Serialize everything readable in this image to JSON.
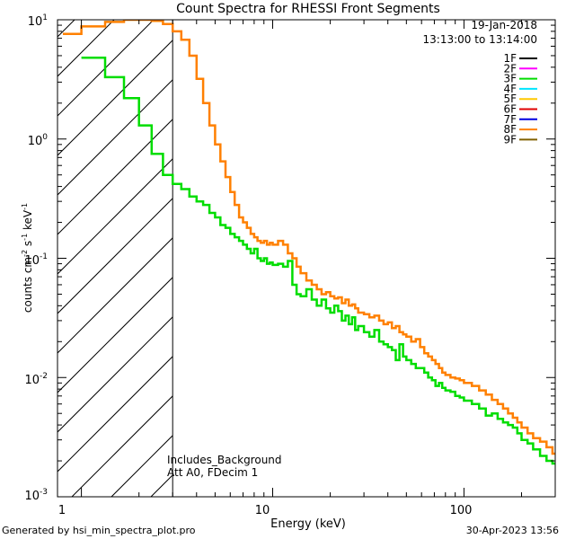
{
  "chart_data": {
    "type": "line",
    "title": "Count Spectra for RHESSI Front Segments",
    "xlabel": "Energy (keV)",
    "ylabel_parts": [
      "counts cm",
      "-2",
      " s",
      "-1",
      " keV",
      "-1"
    ],
    "xscale": "log",
    "yscale": "log",
    "xlim": [
      0.75,
      300
    ],
    "ylim": [
      0.001,
      10
    ],
    "x_ticks": [
      {
        "v": 1,
        "label": "1"
      },
      {
        "v": 10,
        "label": "10"
      },
      {
        "v": 100,
        "label": "100"
      }
    ],
    "y_ticks": [
      {
        "v": 0.001,
        "base": "10",
        "exp": "-3"
      },
      {
        "v": 0.01,
        "base": "10",
        "exp": "-2"
      },
      {
        "v": 0.1,
        "base": "10",
        "exp": "-1"
      },
      {
        "v": 1,
        "base": "10",
        "exp": "0"
      },
      {
        "v": 10,
        "base": "10",
        "exp": "1"
      }
    ],
    "hatched_region": {
      "x_from": 0.75,
      "x_to": 3.0
    },
    "date": "19-Jan-2018",
    "time_range": "13:13:00 to 13:14:00",
    "annotations": [
      "Includes_Background",
      "Att A0, FDecim 1"
    ],
    "legend": [
      {
        "name": "1F",
        "color": "#000000"
      },
      {
        "name": "2F",
        "color": "#ff00ff"
      },
      {
        "name": "3F",
        "color": "#00dd00"
      },
      {
        "name": "4F",
        "color": "#00e5ff"
      },
      {
        "name": "5F",
        "color": "#ffc800"
      },
      {
        "name": "6F",
        "color": "#e00000"
      },
      {
        "name": "7F",
        "color": "#0000e0"
      },
      {
        "name": "8F",
        "color": "#ff8000"
      },
      {
        "name": "9F",
        "color": "#806000"
      }
    ],
    "series": [
      {
        "name": "3F",
        "color": "#00dd00",
        "x": [
          1.0,
          1.33,
          1.67,
          2.0,
          2.33,
          2.67,
          3.0,
          3.33,
          3.67,
          4.0,
          4.33,
          4.67,
          5.0,
          5.33,
          5.67,
          6.0,
          6.33,
          6.67,
          7.0,
          7.33,
          7.67,
          8.0,
          8.33,
          8.67,
          9.0,
          9.33,
          9.67,
          10.0,
          10.67,
          11.33,
          12.0,
          12.67,
          13.33,
          14.0,
          15.0,
          16.0,
          17.0,
          18.0,
          19.0,
          20.0,
          21.0,
          22.0,
          23.0,
          24.0,
          25.0,
          26.0,
          27.0,
          28.0,
          30.0,
          32.0,
          34.0,
          36.0,
          38.0,
          40.0,
          42.0,
          44.0,
          46.0,
          48.0,
          50.0,
          53.0,
          56.0,
          59.0,
          62.0,
          65.0,
          68.0,
          71.0,
          74.0,
          77.0,
          80.0,
          85.0,
          90.0,
          95.0,
          100.0,
          110.0,
          120.0,
          130.0,
          140.0,
          150.0,
          160.0,
          170.0,
          180.0,
          190.0,
          200.0,
          215.0,
          230.0,
          250.0,
          270.0,
          290.0
        ],
        "y": [
          4.8,
          3.3,
          2.2,
          1.3,
          0.75,
          0.5,
          0.42,
          0.38,
          0.33,
          0.3,
          0.28,
          0.24,
          0.22,
          0.19,
          0.18,
          0.16,
          0.15,
          0.14,
          0.13,
          0.12,
          0.11,
          0.12,
          0.1,
          0.095,
          0.1,
          0.09,
          0.092,
          0.088,
          0.09,
          0.085,
          0.095,
          0.06,
          0.05,
          0.048,
          0.055,
          0.045,
          0.04,
          0.045,
          0.038,
          0.035,
          0.04,
          0.036,
          0.03,
          0.033,
          0.028,
          0.032,
          0.025,
          0.027,
          0.024,
          0.022,
          0.025,
          0.02,
          0.019,
          0.018,
          0.017,
          0.014,
          0.019,
          0.015,
          0.014,
          0.013,
          0.012,
          0.012,
          0.011,
          0.01,
          0.0095,
          0.0085,
          0.009,
          0.0082,
          0.0078,
          0.0076,
          0.007,
          0.0068,
          0.0064,
          0.006,
          0.0055,
          0.0048,
          0.005,
          0.0045,
          0.0042,
          0.004,
          0.0038,
          0.0034,
          0.003,
          0.0028,
          0.0025,
          0.0022,
          0.002,
          0.0019
        ]
      },
      {
        "name": "8F",
        "color": "#ff8000",
        "x": [
          0.8,
          1.0,
          1.33,
          1.67,
          2.0,
          2.33,
          2.67,
          3.0,
          3.33,
          3.67,
          4.0,
          4.33,
          4.67,
          5.0,
          5.33,
          5.67,
          6.0,
          6.33,
          6.67,
          7.0,
          7.33,
          7.67,
          8.0,
          8.33,
          8.67,
          9.0,
          9.33,
          9.67,
          10.0,
          10.67,
          11.33,
          12.0,
          12.67,
          13.33,
          14.0,
          15.0,
          16.0,
          17.0,
          18.0,
          19.0,
          20.0,
          21.0,
          22.0,
          23.0,
          24.0,
          25.0,
          26.0,
          27.0,
          28.0,
          30.0,
          32.0,
          34.0,
          36.0,
          38.0,
          40.0,
          42.0,
          44.0,
          46.0,
          48.0,
          50.0,
          53.0,
          56.0,
          59.0,
          62.0,
          65.0,
          68.0,
          71.0,
          74.0,
          77.0,
          80.0,
          85.0,
          90.0,
          95.0,
          100.0,
          110.0,
          120.0,
          130.0,
          140.0,
          150.0,
          160.0,
          170.0,
          180.0,
          190.0,
          200.0,
          215.0,
          230.0,
          250.0,
          270.0,
          290.0
        ],
        "y": [
          7.6,
          8.8,
          9.6,
          10.0,
          10.0,
          9.8,
          9.2,
          8.0,
          6.8,
          5.0,
          3.2,
          2.0,
          1.3,
          0.9,
          0.65,
          0.48,
          0.36,
          0.28,
          0.22,
          0.2,
          0.18,
          0.16,
          0.15,
          0.14,
          0.135,
          0.14,
          0.13,
          0.135,
          0.13,
          0.14,
          0.13,
          0.11,
          0.1,
          0.085,
          0.075,
          0.065,
          0.06,
          0.055,
          0.05,
          0.052,
          0.048,
          0.046,
          0.047,
          0.042,
          0.045,
          0.04,
          0.041,
          0.038,
          0.035,
          0.034,
          0.032,
          0.033,
          0.03,
          0.028,
          0.029,
          0.026,
          0.027,
          0.024,
          0.023,
          0.022,
          0.02,
          0.021,
          0.018,
          0.016,
          0.015,
          0.014,
          0.013,
          0.012,
          0.011,
          0.0105,
          0.01,
          0.0098,
          0.0095,
          0.009,
          0.0085,
          0.0078,
          0.0072,
          0.0065,
          0.006,
          0.0055,
          0.005,
          0.0046,
          0.0042,
          0.0038,
          0.0034,
          0.0031,
          0.0029,
          0.0026,
          0.0023
        ]
      }
    ]
  },
  "footer": {
    "left": "Generated by hsi_min_spectra_plot.pro",
    "right": "30-Apr-2023 13:56"
  }
}
